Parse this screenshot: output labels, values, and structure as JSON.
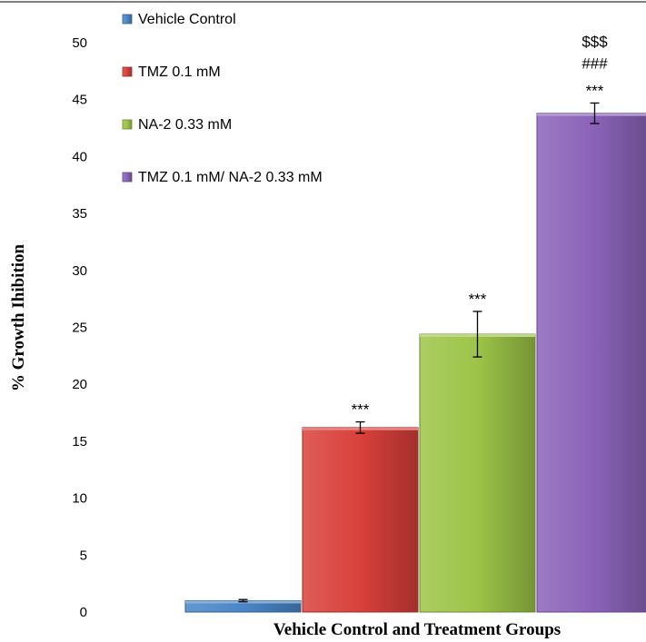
{
  "chart_data": {
    "type": "bar",
    "title": "",
    "xlabel": "Vehicle Control and Treatment Groups",
    "ylabel": "% Growth Ihibition",
    "ylim": [
      0,
      50
    ],
    "yticks": [
      "0",
      "5",
      "10",
      "15",
      "20",
      "25",
      "30",
      "35",
      "40",
      "45",
      "50"
    ],
    "grid": false,
    "legend_position": "top-left",
    "categories": [
      "Vehicle Control",
      "TMZ 0.1 mM",
      "NA-2 0.33 mM",
      "TMZ 0.1 mM/ NA-2 0.33 mM"
    ],
    "series": [
      {
        "name": "Vehicle Control",
        "value": 1.0,
        "error": 0.1,
        "color": "#4a86c8",
        "annotations": []
      },
      {
        "name": "TMZ 0.1 mM",
        "value": 16.2,
        "error": 0.5,
        "color": "#d9403a",
        "annotations": [
          "***"
        ]
      },
      {
        "name": "NA-2 0.33 mM",
        "value": 24.4,
        "error": 2.0,
        "color": "#9dc448",
        "annotations": [
          "***"
        ]
      },
      {
        "name": "TMZ 0.1 mM/ NA-2 0.33 mM",
        "value": 43.8,
        "error": 0.9,
        "color": "#8a62b8",
        "annotations": [
          "***",
          "###",
          "$$$"
        ]
      }
    ]
  }
}
